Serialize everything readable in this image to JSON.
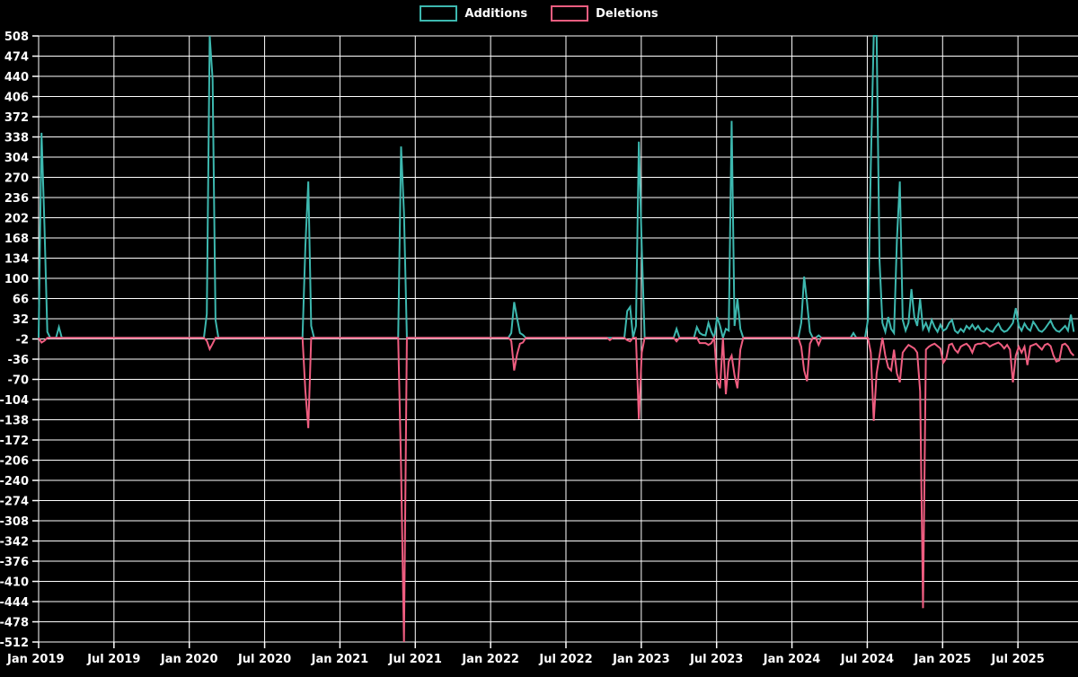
{
  "legend": {
    "items": [
      {
        "label": "Additions",
        "color": "#3db8af"
      },
      {
        "label": "Deletions",
        "color": "#ef5d80"
      }
    ]
  },
  "colors": {
    "background": "#000000",
    "grid": "#ffffff",
    "text": "#ffffff",
    "additions": "#3db8af",
    "deletions": "#ef5d80"
  },
  "chart_data": {
    "type": "line",
    "title": "",
    "xlabel": "",
    "ylabel": "",
    "grid": true,
    "legend_position": "top-center",
    "ylim": [
      -512,
      508
    ],
    "y_ticks": [
      508,
      474,
      440,
      406,
      372,
      338,
      304,
      270,
      236,
      202,
      168,
      134,
      100,
      66,
      32,
      -2,
      -36,
      -70,
      -104,
      -138,
      -172,
      -206,
      -240,
      -274,
      -308,
      -342,
      -376,
      -410,
      -444,
      -478,
      -512
    ],
    "x_tick_labels": [
      "Jan 2019",
      "Jul 2019",
      "Jan 2020",
      "Jul 2020",
      "Jan 2021",
      "Jul 2021",
      "Jan 2022",
      "Jul 2022",
      "Jan 2023",
      "Jul 2023",
      "Jan 2024",
      "Jul 2024",
      "Jan 2025",
      "Jul 2025"
    ],
    "x_unit": "week",
    "weeks_total": 358,
    "baseline_value": 0,
    "series": [
      {
        "name": "Additions",
        "color": "#3db8af",
        "points": [
          [
            1,
            345
          ],
          [
            2,
            190
          ],
          [
            3,
            10
          ],
          [
            7,
            18
          ],
          [
            58,
            40
          ],
          [
            59,
            508
          ],
          [
            60,
            435
          ],
          [
            61,
            30
          ],
          [
            92,
            155
          ],
          [
            93,
            263
          ],
          [
            94,
            20
          ],
          [
            125,
            322
          ],
          [
            126,
            210
          ],
          [
            163,
            8
          ],
          [
            164,
            60
          ],
          [
            165,
            33
          ],
          [
            166,
            8
          ],
          [
            167,
            5
          ],
          [
            203,
            45
          ],
          [
            204,
            52
          ],
          [
            206,
            20
          ],
          [
            207,
            330
          ],
          [
            208,
            153
          ],
          [
            220,
            15
          ],
          [
            227,
            18
          ],
          [
            228,
            8
          ],
          [
            229,
            5
          ],
          [
            230,
            4
          ],
          [
            231,
            25
          ],
          [
            232,
            10
          ],
          [
            234,
            35
          ],
          [
            235,
            20
          ],
          [
            237,
            15
          ],
          [
            238,
            12
          ],
          [
            239,
            365
          ],
          [
            240,
            20
          ],
          [
            241,
            66
          ],
          [
            242,
            15
          ],
          [
            263,
            25
          ],
          [
            264,
            103
          ],
          [
            265,
            60
          ],
          [
            266,
            10
          ],
          [
            269,
            4
          ],
          [
            281,
            8
          ],
          [
            286,
            30
          ],
          [
            287,
            290
          ],
          [
            288,
            508
          ],
          [
            289,
            508
          ],
          [
            290,
            130
          ],
          [
            291,
            25
          ],
          [
            292,
            10
          ],
          [
            293,
            35
          ],
          [
            294,
            15
          ],
          [
            295,
            8
          ],
          [
            296,
            165
          ],
          [
            297,
            263
          ],
          [
            298,
            30
          ],
          [
            299,
            12
          ],
          [
            300,
            25
          ],
          [
            301,
            82
          ],
          [
            302,
            35
          ],
          [
            303,
            20
          ],
          [
            304,
            65
          ],
          [
            305,
            15
          ],
          [
            306,
            25
          ],
          [
            307,
            12
          ],
          [
            308,
            30
          ],
          [
            309,
            18
          ],
          [
            310,
            10
          ],
          [
            311,
            22
          ],
          [
            312,
            12
          ],
          [
            313,
            15
          ],
          [
            314,
            25
          ],
          [
            315,
            30
          ],
          [
            316,
            12
          ],
          [
            317,
            8
          ],
          [
            318,
            15
          ],
          [
            319,
            10
          ],
          [
            320,
            20
          ],
          [
            321,
            15
          ],
          [
            322,
            22
          ],
          [
            323,
            14
          ],
          [
            324,
            20
          ],
          [
            325,
            12
          ],
          [
            326,
            10
          ],
          [
            327,
            16
          ],
          [
            328,
            12
          ],
          [
            329,
            10
          ],
          [
            330,
            18
          ],
          [
            331,
            24
          ],
          [
            332,
            14
          ],
          [
            333,
            10
          ],
          [
            334,
            12
          ],
          [
            335,
            18
          ],
          [
            336,
            25
          ],
          [
            337,
            50
          ],
          [
            338,
            20
          ],
          [
            339,
            12
          ],
          [
            340,
            24
          ],
          [
            341,
            16
          ],
          [
            342,
            12
          ],
          [
            343,
            27
          ],
          [
            344,
            20
          ],
          [
            345,
            12
          ],
          [
            346,
            10
          ],
          [
            347,
            15
          ],
          [
            348,
            22
          ],
          [
            349,
            29
          ],
          [
            350,
            18
          ],
          [
            351,
            12
          ],
          [
            352,
            10
          ],
          [
            353,
            15
          ],
          [
            354,
            20
          ],
          [
            355,
            12
          ],
          [
            356,
            39
          ],
          [
            357,
            10
          ]
        ]
      },
      {
        "name": "Deletions",
        "color": "#ef5d80",
        "points": [
          [
            1,
            -8
          ],
          [
            2,
            -5
          ],
          [
            58,
            -5
          ],
          [
            59,
            -19
          ],
          [
            60,
            -10
          ],
          [
            92,
            -90
          ],
          [
            93,
            -152
          ],
          [
            125,
            -220
          ],
          [
            126,
            -512
          ],
          [
            163,
            -5
          ],
          [
            164,
            -55
          ],
          [
            165,
            -28
          ],
          [
            166,
            -10
          ],
          [
            167,
            -8
          ],
          [
            197,
            -4
          ],
          [
            203,
            -4
          ],
          [
            204,
            -6
          ],
          [
            207,
            -137
          ],
          [
            208,
            -25
          ],
          [
            220,
            -6
          ],
          [
            228,
            -9
          ],
          [
            229,
            -9
          ],
          [
            230,
            -9
          ],
          [
            231,
            -12
          ],
          [
            232,
            -9
          ],
          [
            234,
            -72
          ],
          [
            235,
            -85
          ],
          [
            237,
            -95
          ],
          [
            238,
            -40
          ],
          [
            239,
            -30
          ],
          [
            240,
            -63
          ],
          [
            241,
            -85
          ],
          [
            242,
            -20
          ],
          [
            263,
            -15
          ],
          [
            264,
            -55
          ],
          [
            265,
            -73
          ],
          [
            266,
            -10
          ],
          [
            269,
            -12
          ],
          [
            287,
            -25
          ],
          [
            288,
            -140
          ],
          [
            289,
            -60
          ],
          [
            290,
            -30
          ],
          [
            292,
            -30
          ],
          [
            293,
            -50
          ],
          [
            294,
            -55
          ],
          [
            295,
            -20
          ],
          [
            296,
            -60
          ],
          [
            297,
            -75
          ],
          [
            298,
            -25
          ],
          [
            299,
            -18
          ],
          [
            300,
            -12
          ],
          [
            301,
            -15
          ],
          [
            302,
            -18
          ],
          [
            303,
            -25
          ],
          [
            304,
            -90
          ],
          [
            305,
            -455
          ],
          [
            306,
            -20
          ],
          [
            307,
            -15
          ],
          [
            308,
            -12
          ],
          [
            309,
            -10
          ],
          [
            310,
            -14
          ],
          [
            311,
            -18
          ],
          [
            312,
            -42
          ],
          [
            313,
            -35
          ],
          [
            314,
            -12
          ],
          [
            315,
            -10
          ],
          [
            316,
            -20
          ],
          [
            317,
            -25
          ],
          [
            318,
            -15
          ],
          [
            319,
            -12
          ],
          [
            320,
            -10
          ],
          [
            321,
            -15
          ],
          [
            322,
            -25
          ],
          [
            323,
            -12
          ],
          [
            324,
            -10
          ],
          [
            325,
            -10
          ],
          [
            326,
            -8
          ],
          [
            327,
            -10
          ],
          [
            328,
            -15
          ],
          [
            329,
            -12
          ],
          [
            330,
            -10
          ],
          [
            331,
            -8
          ],
          [
            332,
            -12
          ],
          [
            333,
            -18
          ],
          [
            334,
            -12
          ],
          [
            335,
            -20
          ],
          [
            336,
            -75
          ],
          [
            337,
            -30
          ],
          [
            338,
            -15
          ],
          [
            339,
            -25
          ],
          [
            340,
            -15
          ],
          [
            341,
            -46
          ],
          [
            342,
            -14
          ],
          [
            343,
            -12
          ],
          [
            344,
            -10
          ],
          [
            345,
            -15
          ],
          [
            346,
            -20
          ],
          [
            347,
            -12
          ],
          [
            348,
            -10
          ],
          [
            349,
            -14
          ],
          [
            350,
            -30
          ],
          [
            351,
            -40
          ],
          [
            352,
            -38
          ],
          [
            353,
            -12
          ],
          [
            354,
            -10
          ],
          [
            355,
            -15
          ],
          [
            356,
            -25
          ],
          [
            357,
            -30
          ]
        ]
      }
    ]
  }
}
